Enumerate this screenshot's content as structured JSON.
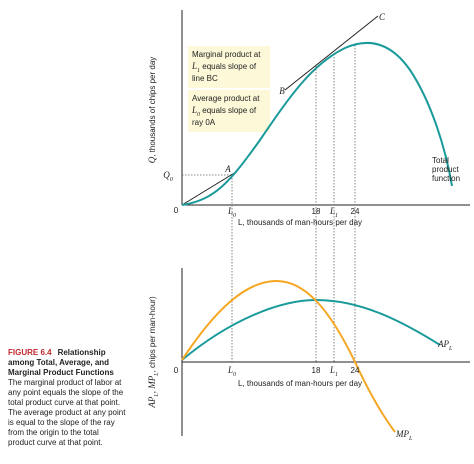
{
  "caption": {
    "label": "FIGURE 6.4",
    "title_lines": [
      "Relationship",
      "among Total, Average, and",
      "Marginal Product Functions"
    ],
    "body_lines": [
      "The marginal product of labor at",
      "any point equals the slope of the",
      "total product curve at that point.",
      "The average product at any point",
      "is equal to the slope of the ray",
      "from the origin to the total",
      "product curve at that point."
    ]
  },
  "top_chart": {
    "y_axis_label": {
      "base": "Q",
      "rest": ", thousands of chips per day"
    },
    "x_axis_label": "L, thousands of man-hours per day",
    "origin": "0",
    "q0": {
      "base": "Q",
      "sub": "0"
    },
    "x_ticks": [
      {
        "base": "L",
        "sub": "0"
      },
      "18",
      {
        "base": "L",
        "sub": "1"
      },
      "24"
    ],
    "point_a": "A",
    "point_b": "B",
    "point_c": "C",
    "note_1": [
      "Marginal product at",
      {
        "base": "L",
        "sub": "1",
        "rest": " equals slope of"
      },
      "line BC"
    ],
    "note_2": [
      "Average product at",
      {
        "base": "L",
        "sub": "0",
        "rest": " equals slope of"
      },
      "ray 0A"
    ],
    "curve_label": [
      "Total",
      "product",
      "function"
    ]
  },
  "bottom_chart": {
    "y_axis_label": [
      "AP",
      "L",
      ", MP",
      "L",
      ", chips per man-hour)"
    ],
    "x_axis_label": "L, thousands of man-hours per day",
    "origin": "0",
    "x_ticks": [
      {
        "base": "L",
        "sub": "0"
      },
      "18",
      {
        "base": "L",
        "sub": "1"
      },
      "24"
    ],
    "ap_label": {
      "base": "AP",
      "sub": "L"
    },
    "mp_label": {
      "base": "MP",
      "sub": "L"
    }
  }
}
